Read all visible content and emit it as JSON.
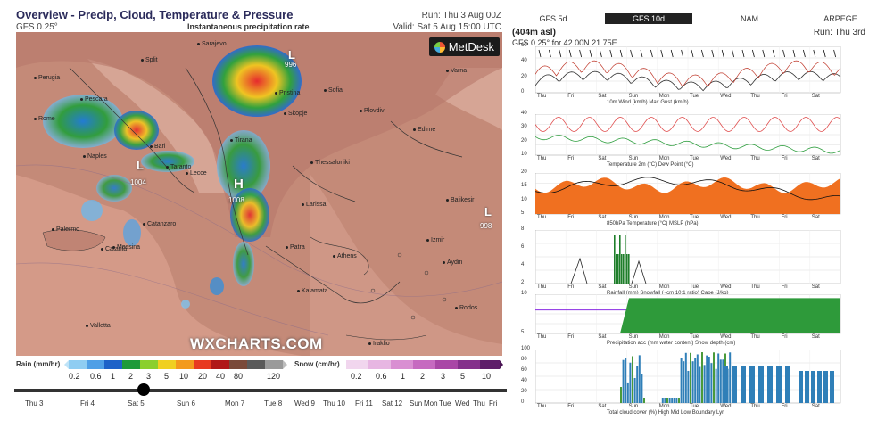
{
  "left": {
    "title": "Overview - Precip, Cloud, Temperature & Pressure",
    "model": "GFS 0.25°",
    "layer_label": "Instantaneous precipitation rate",
    "run": "Run: Thu 3 Aug 00Z",
    "valid": "Valid: Sat 5 Aug 15:00 UTC",
    "logo": "MetDesk",
    "watermark": "WXCHARTS.COM",
    "cities": [
      {
        "name": "Sarajevo"
      },
      {
        "name": "Split"
      },
      {
        "name": "Perugia"
      },
      {
        "name": "Pescara"
      },
      {
        "name": "Rome"
      },
      {
        "name": "Bari"
      },
      {
        "name": "Naples"
      },
      {
        "name": "Taranto"
      },
      {
        "name": "Lecce"
      },
      {
        "name": "Catanzaro"
      },
      {
        "name": "Palermo"
      },
      {
        "name": "Messina"
      },
      {
        "name": "Catania"
      },
      {
        "name": "Valletta"
      },
      {
        "name": "Pristina"
      },
      {
        "name": "Skopje"
      },
      {
        "name": "Tirana"
      },
      {
        "name": "Sofia"
      },
      {
        "name": "Plovdiv"
      },
      {
        "name": "Edirne"
      },
      {
        "name": "Varna"
      },
      {
        "name": "Thessaloniki"
      },
      {
        "name": "Larissa"
      },
      {
        "name": "Patra"
      },
      {
        "name": "Athens"
      },
      {
        "name": "Kalamata"
      },
      {
        "name": "Balikesir"
      },
      {
        "name": "Izmir"
      },
      {
        "name": "Aydin"
      },
      {
        "name": "Rodos"
      },
      {
        "name": "Iraklio"
      }
    ],
    "pressure": [
      {
        "type": "L",
        "value": "1004"
      },
      {
        "type": "H",
        "value": "1008"
      },
      {
        "type": "L",
        "value": "996"
      },
      {
        "type": "L",
        "value": "998"
      }
    ],
    "rain_label": "Rain (mm/hr)",
    "snow_label": "Snow (cm/hr)",
    "rain_values": [
      "0.2",
      "0.6",
      "1",
      "2",
      "3",
      "5",
      "10",
      "20",
      "40",
      "80",
      "120"
    ],
    "snow_values": [
      "0.2",
      "0.6",
      "1",
      "2",
      "3",
      "5",
      "10"
    ],
    "days": [
      "Thu 3",
      "Fri 4",
      "Sat 5",
      "Sun 6",
      "Mon 7",
      "Tue 8",
      "Wed 9",
      "Thu 10",
      "Fri 11",
      "Sat 12",
      "Sun",
      "Mon",
      "Tue",
      "Wed",
      "Thu",
      "Fri"
    ]
  },
  "right": {
    "tabs": [
      {
        "label": "GFS 5d",
        "active": false
      },
      {
        "label": "GFS 10d",
        "active": true
      },
      {
        "label": "NAM",
        "active": false
      },
      {
        "label": "ARPEGE",
        "active": false
      }
    ],
    "altitude": "(404m asl)",
    "run": "Run: Thu 3rd",
    "location": "GFS 0.25° for 42.00N 21.75E",
    "day_ticks": [
      "Thu",
      "Fri",
      "Sat",
      "Sun",
      "Mon",
      "Tue",
      "Wed",
      "Thu",
      "Fri",
      "Sat"
    ],
    "panels": [
      {
        "id": "wind",
        "legend": [
          "10m Wind (km/h)",
          "Max Gust (km/h)"
        ],
        "yticks": [
          "60",
          "40",
          "20",
          "0"
        ]
      },
      {
        "id": "temp",
        "legend": [
          "Temperature 2m (°C)",
          "Dew Point (°C)"
        ],
        "yticks": [
          "40",
          "30",
          "20",
          "10"
        ]
      },
      {
        "id": "press",
        "legend": [
          "850hPa Temperature (°C)",
          "MSLP (hPa)"
        ],
        "yticks": [
          "20",
          "15",
          "10",
          "5"
        ]
      },
      {
        "id": "rain",
        "legend": [
          "Rainfall (mm)",
          "Snowfall (~cm 10:1 ratio)",
          "Cape (J/kg)"
        ],
        "yticks": [
          "8",
          "6",
          "4",
          "2"
        ]
      },
      {
        "id": "acc",
        "legend": [
          "Precipitation acc (mm water content)",
          "Snow depth (cm)"
        ],
        "yticks": [
          "10",
          "5"
        ]
      },
      {
        "id": "cloud",
        "legend": [
          "Total cloud cover (%)",
          "High",
          "Mid",
          "Low",
          "Boundary Lyr"
        ],
        "yticks": [
          "100",
          "80",
          "60",
          "40",
          "20",
          "0"
        ]
      }
    ],
    "colors": {
      "wind": "#333333",
      "gust": "#c0392b",
      "temp": "#e05050",
      "dew": "#2e9e3e",
      "t850": "#f07020",
      "mslp": "#111111",
      "rain": "#1e7e2a",
      "snow": "#8a2be2",
      "cape": "#222222",
      "acc": "#2e9a3a",
      "cloud": "#2f7fb8"
    }
  }
}
